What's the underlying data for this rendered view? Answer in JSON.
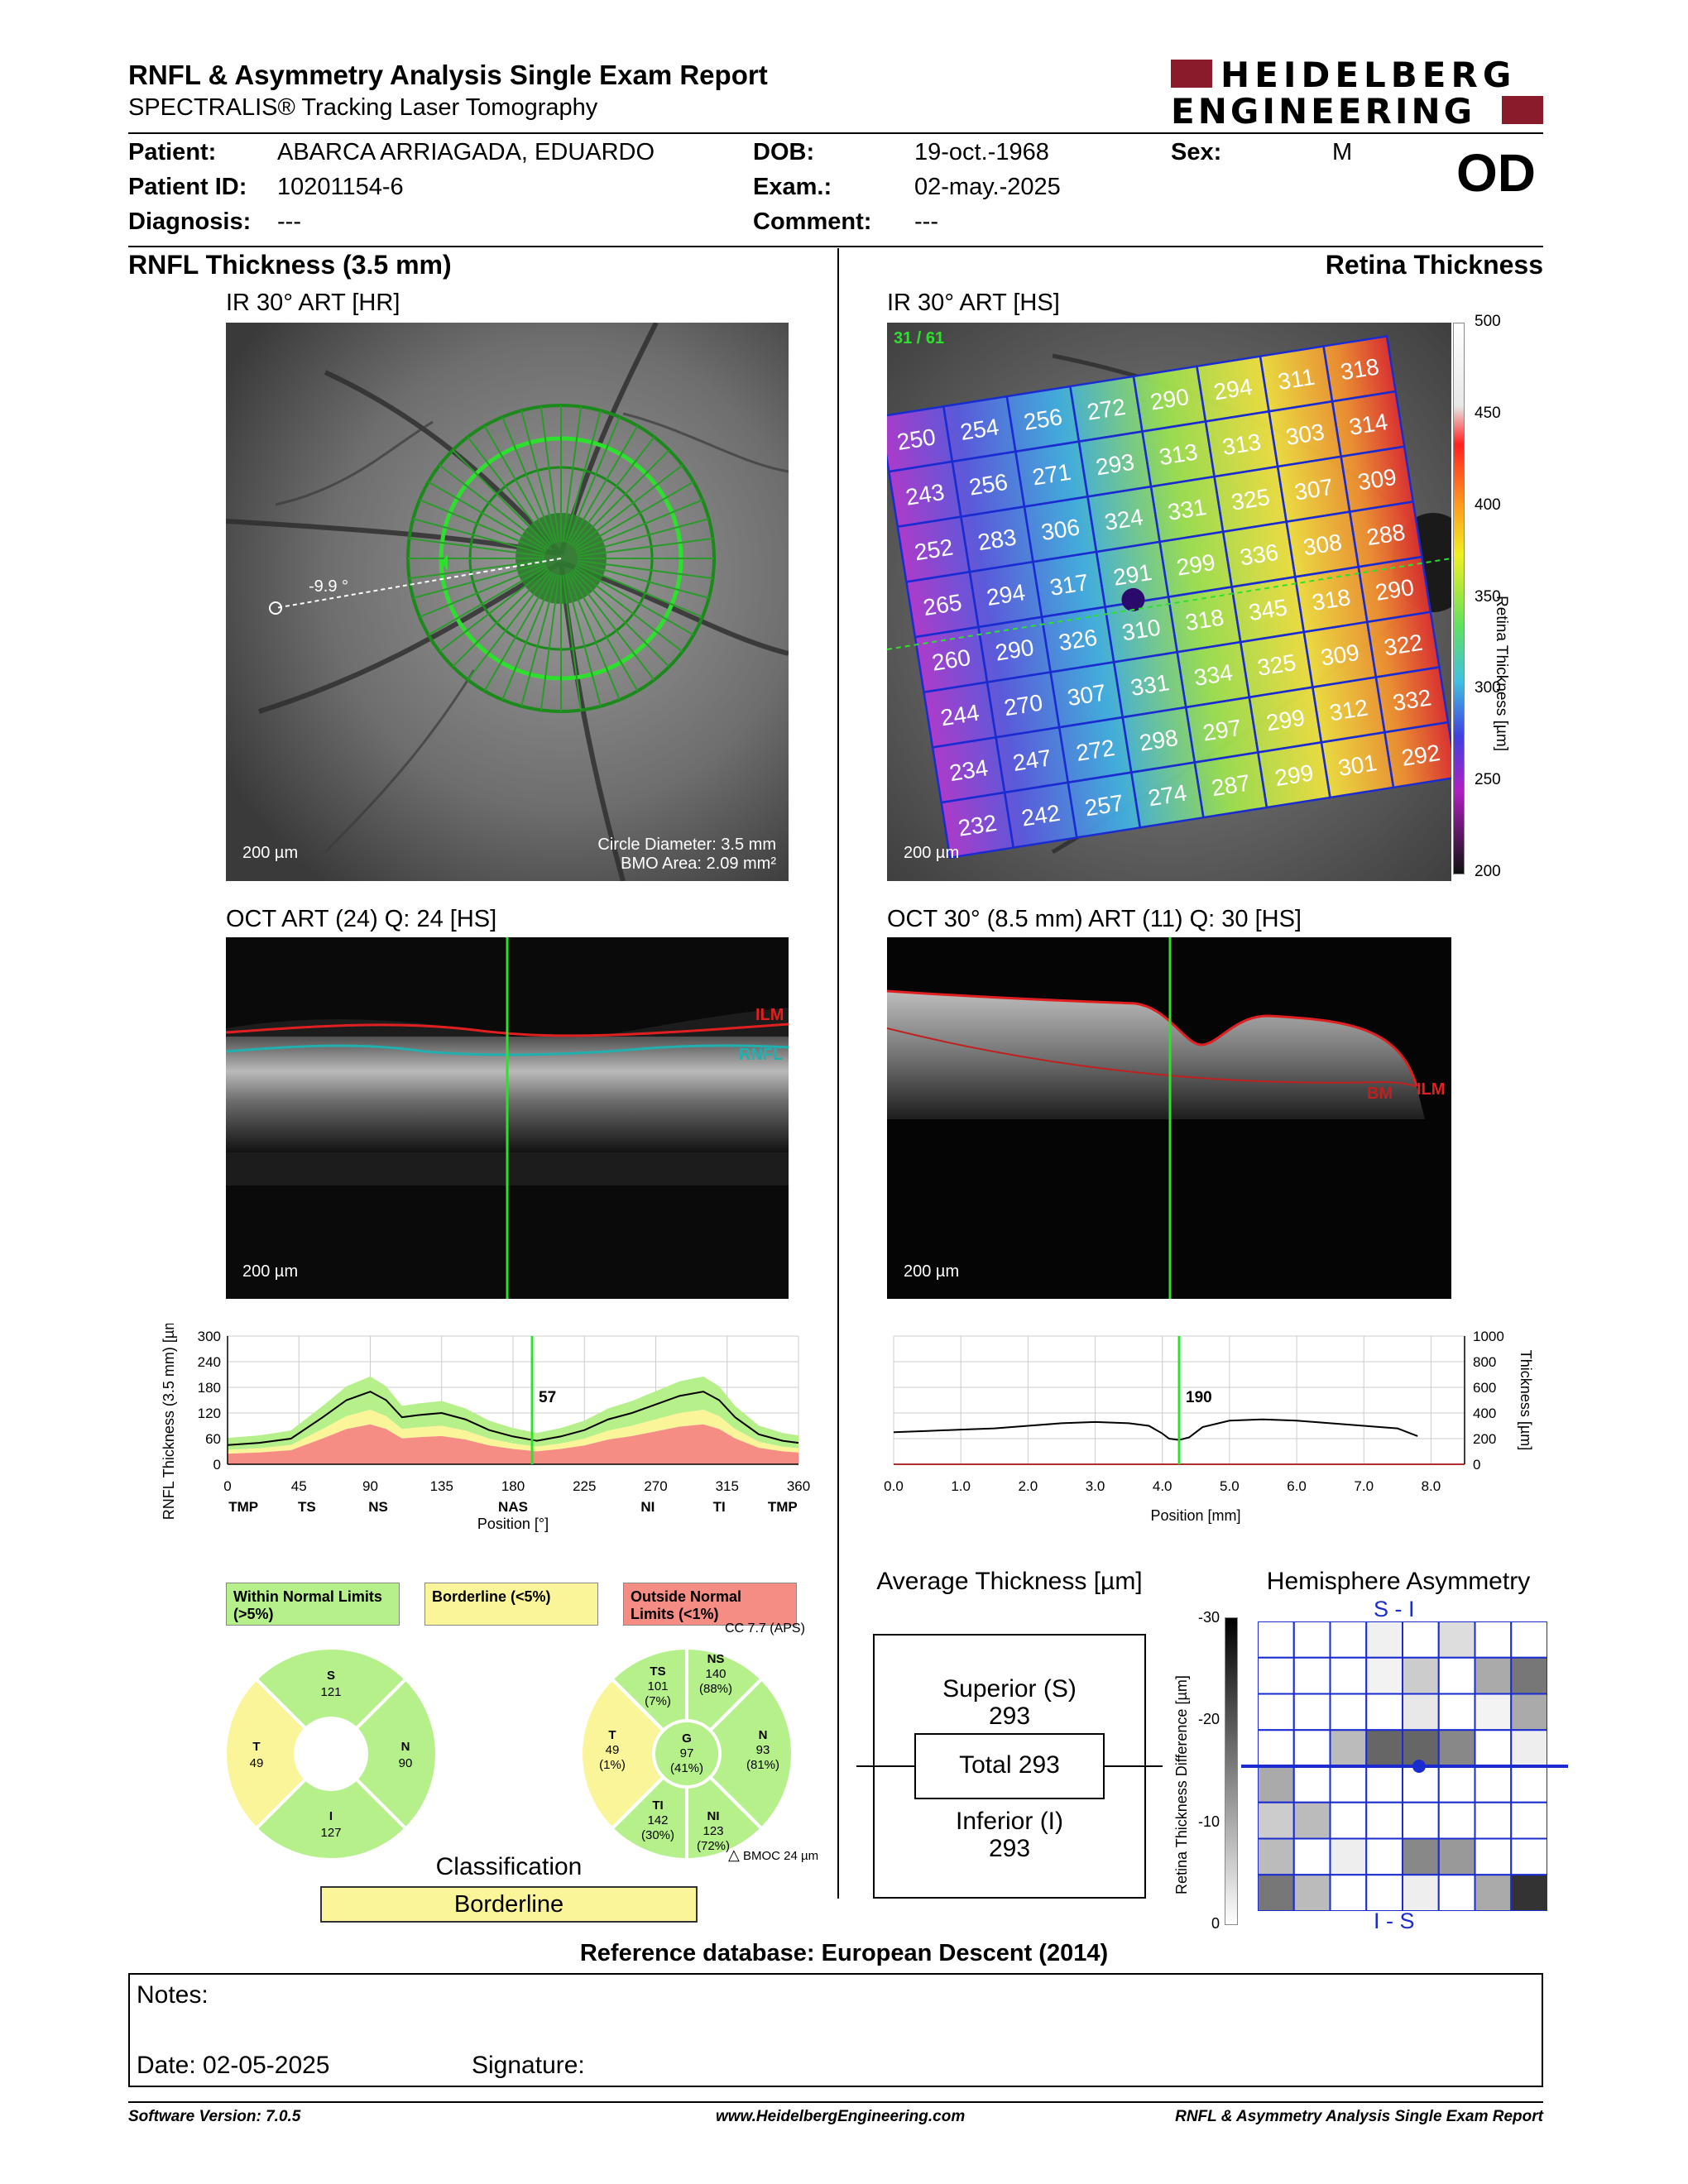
{
  "header": {
    "title": "RNFL & Asymmetry Analysis Single Exam Report",
    "subtitle": "SPECTRALIS® Tracking Laser Tomography",
    "logo_line1": "HEIDELBERG",
    "logo_line2": "ENGINEERING"
  },
  "patient": {
    "patient_label": "Patient:",
    "patient_value": "ABARCA ARRIAGADA, EDUARDO",
    "id_label": "Patient ID:",
    "id_value": "10201154-6",
    "diagnosis_label": "Diagnosis:",
    "diagnosis_value": "---",
    "dob_label": "DOB:",
    "dob_value": "19-oct.-1968",
    "exam_label": "Exam.:",
    "exam_value": "02-may.-2025",
    "comment_label": "Comment:",
    "comment_value": "---",
    "sex_label": "Sex:",
    "sex_value": "M",
    "eye": "OD"
  },
  "left": {
    "section_title": "RNFL Thickness (3.5 mm)",
    "ir_title": "IR 30° ART [HR]",
    "ir_angle": "-9.9 °",
    "ir_scale": "200 µm",
    "circle_diameter": "Circle Diameter: 3.5 mm",
    "bmo_area": "BMO Area: 2.09 mm²",
    "oct_title": "OCT ART (24) Q: 24 [HS]",
    "oct_scale": "200 µm",
    "ilm": "ILM",
    "rnfl": "RNFL"
  },
  "right": {
    "section_title": "Retina Thickness",
    "ir_title": "IR 30° ART [HS]",
    "ir_counter": "31 / 61",
    "ir_scale": "200 µm",
    "colorbar_label": "Retina Thickness [µm]",
    "colorbar_ticks": [
      "500",
      "450",
      "400",
      "350",
      "300",
      "250",
      "200"
    ],
    "oct_title": "OCT 30° (8.5 mm) ART (11) Q: 30 [HS]",
    "oct_scale": "200 µm",
    "ilm": "ILM",
    "bm": "BM"
  },
  "grid_values": [
    [
      "250",
      "254",
      "256",
      "272",
      "290",
      "294",
      "311",
      "318"
    ],
    [
      "243",
      "256",
      "271",
      "293",
      "313",
      "313",
      "303",
      "314"
    ],
    [
      "252",
      "283",
      "306",
      "324",
      "331",
      "325",
      "307",
      "309"
    ],
    [
      "265",
      "294",
      "317",
      "291",
      "299",
      "336",
      "308",
      "288"
    ],
    [
      "260",
      "290",
      "326",
      "310",
      "318",
      "345",
      "318",
      "290"
    ],
    [
      "244",
      "270",
      "307",
      "331",
      "334",
      "325",
      "309",
      "322"
    ],
    [
      "234",
      "247",
      "272",
      "298",
      "297",
      "299",
      "312",
      "332"
    ],
    [
      "232",
      "242",
      "257",
      "274",
      "287",
      "299",
      "301",
      "292"
    ]
  ],
  "chart_data": [
    {
      "type": "line",
      "title": "",
      "ylabel": "RNFL Thickness (3.5 mm) [µm]",
      "xlabel": "Position [°]",
      "ylim": [
        0,
        300
      ],
      "xlim": [
        0,
        360
      ],
      "yticks": [
        "300",
        "240",
        "180",
        "120",
        "60",
        "0"
      ],
      "xticks": [
        "0",
        "45",
        "90",
        "135",
        "180",
        "225",
        "270",
        "315",
        "360"
      ],
      "sector_labels": [
        "TMP",
        "TS",
        "NS",
        "NAS",
        "NI",
        "TI",
        "TMP"
      ],
      "marker_position": 192,
      "marker_value": "57",
      "x": [
        0,
        20,
        40,
        60,
        75,
        90,
        100,
        110,
        120,
        135,
        150,
        165,
        180,
        195,
        210,
        225,
        240,
        255,
        270,
        285,
        300,
        310,
        320,
        335,
        350,
        360
      ],
      "series": [
        {
          "name": "",
          "values": [
            45,
            50,
            60,
            110,
            150,
            170,
            150,
            110,
            115,
            120,
            105,
            80,
            65,
            55,
            65,
            80,
            105,
            120,
            140,
            160,
            170,
            150,
            110,
            70,
            55,
            50
          ]
        }
      ]
    },
    {
      "type": "line",
      "title": "",
      "ylabel": "Thickness [µm]",
      "xlabel": "Position [mm]",
      "ylim": [
        0,
        1000
      ],
      "xlim": [
        0,
        8.5
      ],
      "yticks": [
        "1000",
        "800",
        "600",
        "400",
        "200",
        "0"
      ],
      "xticks": [
        "0.0",
        "1.0",
        "2.0",
        "3.0",
        "4.0",
        "5.0",
        "6.0",
        "7.0",
        "8.0"
      ],
      "marker_position": 4.25,
      "marker_value": "190",
      "x": [
        0,
        0.5,
        1,
        1.5,
        2,
        2.5,
        3,
        3.5,
        3.8,
        4.0,
        4.1,
        4.25,
        4.4,
        4.6,
        5.0,
        5.5,
        6.0,
        6.5,
        7.0,
        7.5,
        7.8
      ],
      "series": [
        {
          "name": "",
          "values": [
            250,
            260,
            270,
            280,
            300,
            320,
            330,
            320,
            300,
            240,
            200,
            190,
            210,
            290,
            340,
            350,
            340,
            320,
            300,
            280,
            220
          ]
        }
      ]
    }
  ],
  "legend": {
    "within": "Within Normal Limits (>5%)",
    "borderline": "Borderline (<5%)",
    "outside": "Outside Normal Limits (<1%)"
  },
  "sectors_simple": {
    "S": {
      "label": "S",
      "value": "121"
    },
    "T": {
      "label": "T",
      "value": "49"
    },
    "N": {
      "label": "N",
      "value": "90"
    },
    "I": {
      "label": "I",
      "value": "127"
    }
  },
  "sectors_detail": {
    "cc": "CC 7.7 (APS)",
    "TS": {
      "label": "TS",
      "value": "101",
      "pct": "(7%)"
    },
    "NS": {
      "label": "NS",
      "value": "140",
      "pct": "(88%)"
    },
    "T": {
      "label": "T",
      "value": "49",
      "pct": "(1%)"
    },
    "G": {
      "label": "G",
      "value": "97",
      "pct": "(41%)"
    },
    "N": {
      "label": "N",
      "value": "93",
      "pct": "(81%)"
    },
    "TI": {
      "label": "TI",
      "value": "142",
      "pct": "(30%)"
    },
    "NI": {
      "label": "NI",
      "value": "123",
      "pct": "(72%)"
    },
    "bmoc": "BMOC 24 µm"
  },
  "classification": {
    "title": "Classification",
    "value": "Borderline"
  },
  "average": {
    "title": "Average Thickness [µm]",
    "superior_label": "Superior (S)",
    "superior_value": "293",
    "total_label": "Total 293",
    "inferior_label": "Inferior (I)",
    "inferior_value": "293"
  },
  "asymmetry": {
    "title": "Hemisphere Asymmetry",
    "top_label": "S - I",
    "bottom_label": "I - S",
    "axis_label": "Retina Thickness Difference [µm]",
    "ticks": [
      "-30",
      "-20",
      "-10",
      "0"
    ]
  },
  "reference": "Reference database: European Descent (2014)",
  "notes": {
    "notes_label": "Notes:",
    "date_label": "Date: 02-05-2025",
    "signature_label": "Signature:"
  },
  "footer": {
    "software": "Software Version: 7.0.5",
    "website": "www.HeidelbergEngineering.com",
    "report": "RNFL & Asymmetry Analysis Single Exam Report"
  },
  "colors": {
    "normal": "#b6f08a",
    "borderline": "#fbf59a",
    "outside": "#f58d84",
    "logo_red": "#8a1b2b",
    "grid_blue": "#1a2cd0"
  }
}
